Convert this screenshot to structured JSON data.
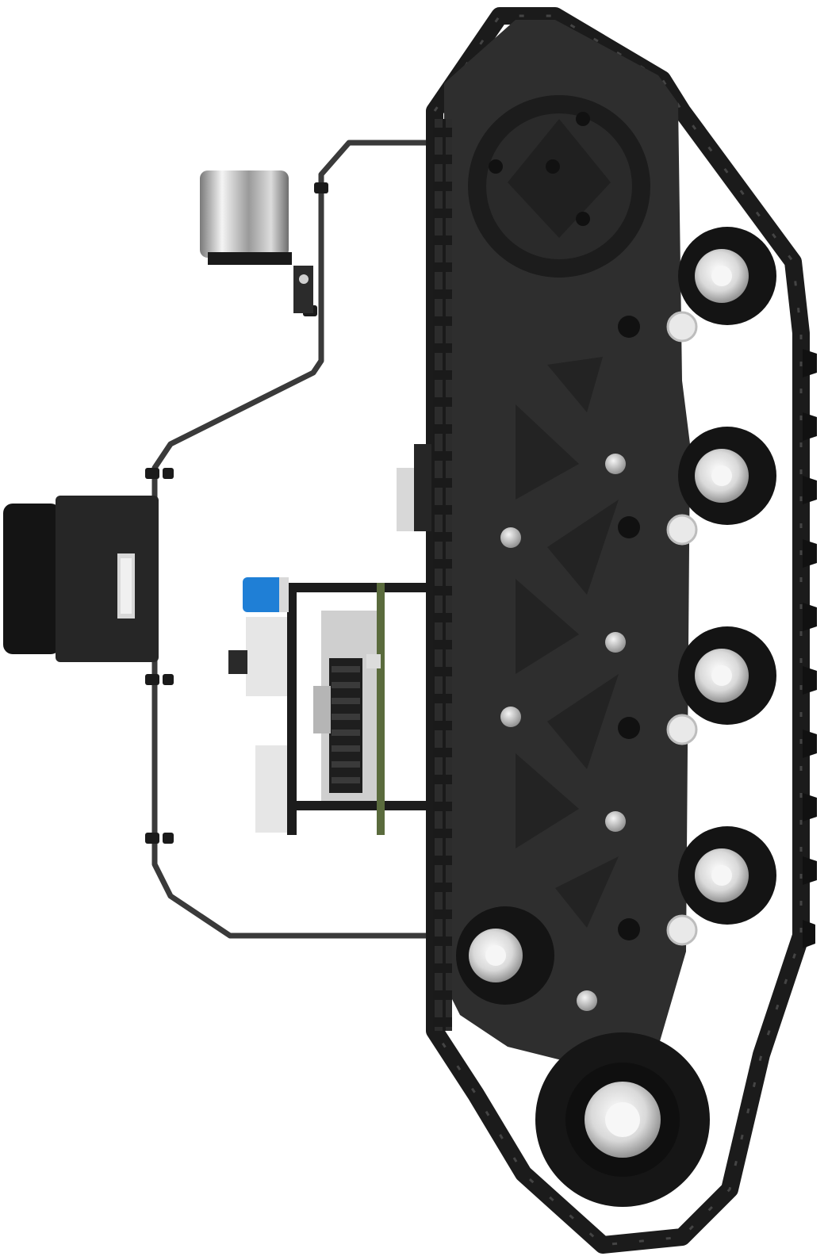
{
  "image": {
    "subject": "tracked-robot-chassis-side-view",
    "colors": {
      "background": "#ffffff",
      "frame": "#2b2b2b",
      "track": "#1e1e1e",
      "wheel_dark": "#141414",
      "hub_light": "#e8e8e8",
      "board_green": "#5a6b3d",
      "connector_blue": "#1f7fd6",
      "lidar_silver": "#b8b8b8"
    }
  }
}
